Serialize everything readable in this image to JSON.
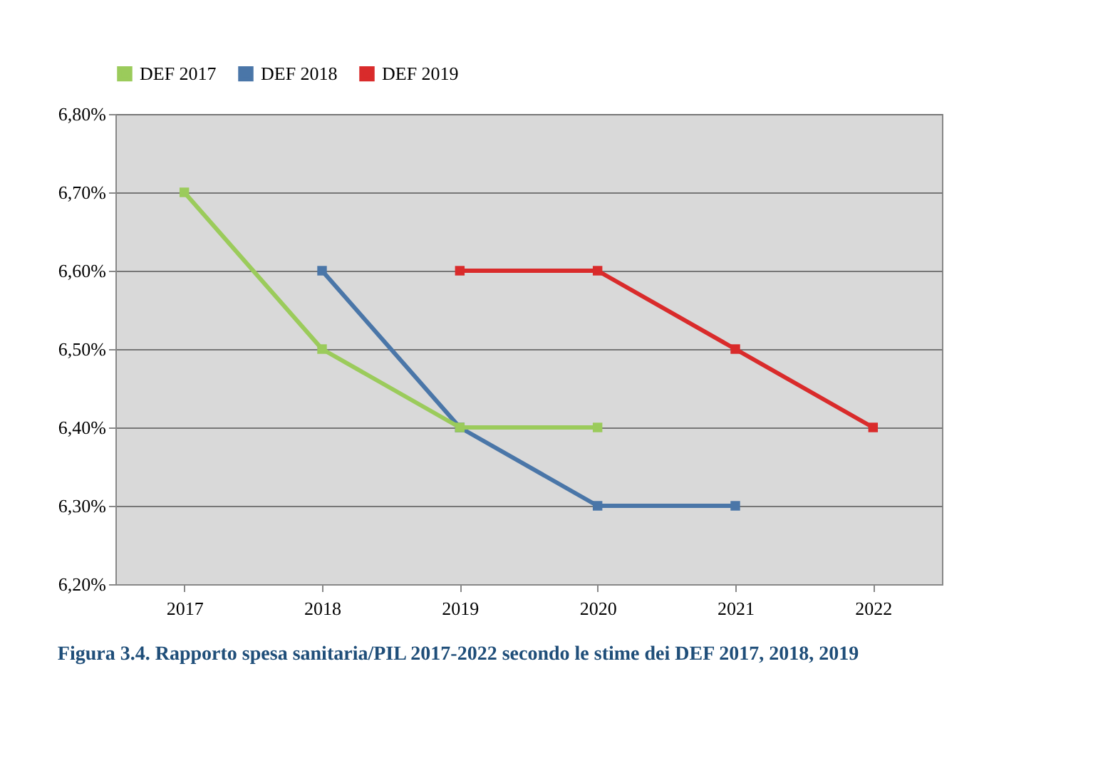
{
  "chart_data": {
    "type": "line",
    "categories": [
      "2017",
      "2018",
      "2019",
      "2020",
      "2021",
      "2022"
    ],
    "series": [
      {
        "name": "DEF 2017",
        "color": "#9bcb5b",
        "values": [
          6.7,
          6.5,
          6.4,
          6.4,
          null,
          null
        ]
      },
      {
        "name": "DEF 2018",
        "color": "#4a76a8",
        "values": [
          null,
          6.6,
          6.4,
          6.3,
          6.3,
          null
        ]
      },
      {
        "name": "DEF 2019",
        "color": "#d92b2b",
        "values": [
          null,
          null,
          6.6,
          6.6,
          6.5,
          6.4
        ]
      }
    ],
    "ylim": [
      6.2,
      6.8
    ],
    "yticks": [
      {
        "value": 6.2,
        "label": "6,20%"
      },
      {
        "value": 6.3,
        "label": "6,30%"
      },
      {
        "value": 6.4,
        "label": "6,40%"
      },
      {
        "value": 6.5,
        "label": "6,50%"
      },
      {
        "value": 6.6,
        "label": "6,60%"
      },
      {
        "value": 6.7,
        "label": "6,70%"
      },
      {
        "value": 6.8,
        "label": "6,80%"
      }
    ],
    "grid": "y",
    "legend": "top",
    "marker": "square",
    "line_style": "solid",
    "annotations": [
      "Figura 3.4. Rapporto spesa sanitaria/PIL 2017-2022 secondo le stime dei DEF 2017, 2018, 2019"
    ]
  }
}
